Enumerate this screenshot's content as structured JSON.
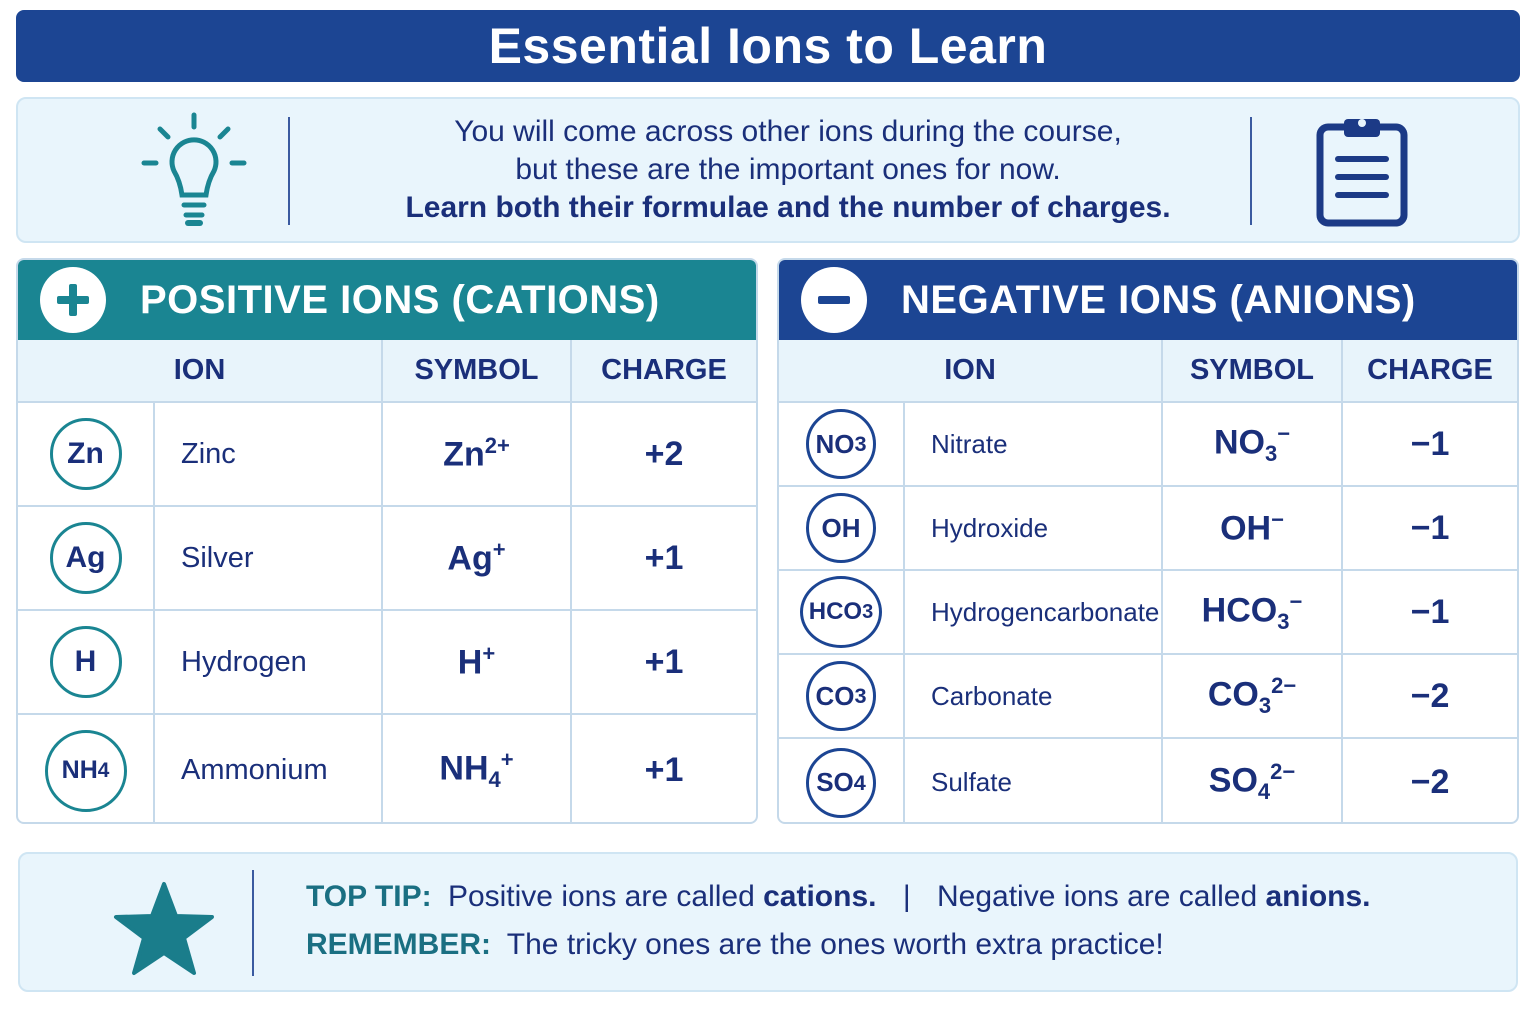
{
  "title": "Essential Ions to Learn",
  "intro": {
    "line1": "You will come across other ions during the course,",
    "line2": "but these are the important ones for now.",
    "line3": "Learn both their formulae and the number of charges.",
    "left_icon": "lightbulb-icon",
    "right_icon": "clipboard-icon"
  },
  "colors": {
    "accent_blue": "#1c4593",
    "accent_teal": "#1a8592"
  },
  "positive": {
    "heading": "POSITIVE IONS (CATIONS)",
    "headers": {
      "ion": "ION",
      "symbol": "SYMBOL",
      "charge": "CHARGE"
    },
    "rows": [
      {
        "badge": "Zn",
        "badge_sub": "",
        "name": "Zinc",
        "sym": "Zn",
        "sym_sub": "",
        "sym_sup": "2+",
        "charge": "+2"
      },
      {
        "badge": "Ag",
        "badge_sub": "",
        "name": "Silver",
        "sym": "Ag",
        "sym_sub": "",
        "sym_sup": "+",
        "charge": "+1"
      },
      {
        "badge": "H",
        "badge_sub": "",
        "name": "Hydrogen",
        "sym": "H",
        "sym_sub": "",
        "sym_sup": "+",
        "charge": "+1"
      },
      {
        "badge": "NH",
        "badge_sub": "4",
        "name": "Ammonium",
        "sym": "NH",
        "sym_sub": "4",
        "sym_sup": "+",
        "charge": "+1"
      }
    ]
  },
  "negative": {
    "heading": "NEGATIVE IONS (ANIONS)",
    "headers": {
      "ion": "ION",
      "symbol": "SYMBOL",
      "charge": "CHARGE"
    },
    "rows": [
      {
        "badge": "NO",
        "badge_sub": "3",
        "name": "Nitrate",
        "sym": "NO",
        "sym_sub": "3",
        "sym_sup": "−",
        "charge": "−1"
      },
      {
        "badge": "OH",
        "badge_sub": "",
        "name": "Hydroxide",
        "sym": "OH",
        "sym_sub": "",
        "sym_sup": "−",
        "charge": "−1"
      },
      {
        "badge": "HCO",
        "badge_sub": "3",
        "name": "Hydrogencarbonate",
        "sym": "HCO",
        "sym_sub": "3",
        "sym_sup": "−",
        "charge": "−1"
      },
      {
        "badge": "CO",
        "badge_sub": "3",
        "name": "Carbonate",
        "sym": "CO",
        "sym_sub": "3",
        "sym_sup": "2−",
        "charge": "−2"
      },
      {
        "badge": "SO",
        "badge_sub": "4",
        "name": "Sulfate",
        "sym": "SO",
        "sym_sub": "4",
        "sym_sup": "2−",
        "charge": "−2"
      }
    ]
  },
  "tip": {
    "top_tip_label": "TOP TIP:",
    "pos_text": "Positive ions are called",
    "pos_word": "cations.",
    "separator": "|",
    "neg_text": "Negative ions are called",
    "neg_word": "anions.",
    "remember_label": "REMEMBER:",
    "remember_text": "The tricky ones are the ones worth extra practice!",
    "icon": "star-icon"
  }
}
